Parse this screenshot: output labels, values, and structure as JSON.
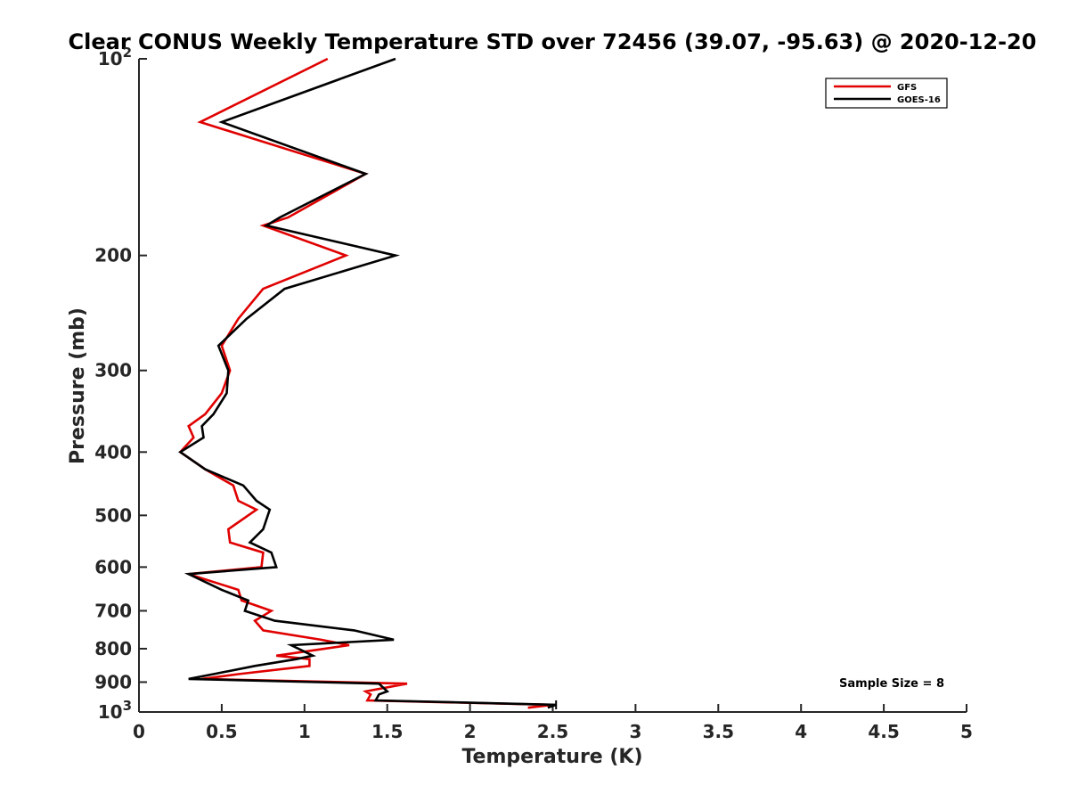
{
  "chart_data": {
    "type": "line",
    "title": "Clear CONUS Weekly Temperature STD over 72456 (39.07, -95.63) @ 2020-12-20",
    "xlabel": "Temperature (K)",
    "ylabel": "Pressure (mb)",
    "xlim": [
      0,
      5
    ],
    "ylim": [
      100,
      1000
    ],
    "y_scale": "log",
    "y_reversed": true,
    "x_ticks": [
      0,
      0.5,
      1,
      1.5,
      2,
      2.5,
      3,
      3.5,
      4,
      4.5,
      5
    ],
    "x_tick_labels": [
      "0",
      "0.5",
      "1",
      "1.5",
      "2",
      "2.5",
      "3",
      "3.5",
      "4",
      "4.5",
      "5"
    ],
    "y_ticks": [
      {
        "value": 100,
        "base": "10",
        "exp": "2"
      },
      {
        "value": 200,
        "label": "200"
      },
      {
        "value": 300,
        "label": "300"
      },
      {
        "value": 400,
        "label": "400"
      },
      {
        "value": 500,
        "label": "500"
      },
      {
        "value": 600,
        "label": "600"
      },
      {
        "value": 700,
        "label": "700"
      },
      {
        "value": 800,
        "label": "800"
      },
      {
        "value": 900,
        "label": "900"
      },
      {
        "value": 1000,
        "base": "10",
        "exp": "3"
      }
    ],
    "legend_position": "top-right",
    "annotation": "Sample Size = 8",
    "series": [
      {
        "name": "GFS",
        "color": "#e00000",
        "points": [
          [
            1.14,
            100
          ],
          [
            0.37,
            125
          ],
          [
            1.37,
            150
          ],
          [
            0.9,
            175
          ],
          [
            0.75,
            180
          ],
          [
            1.25,
            200
          ],
          [
            0.75,
            225
          ],
          [
            0.6,
            250
          ],
          [
            0.5,
            275
          ],
          [
            0.55,
            300
          ],
          [
            0.5,
            325
          ],
          [
            0.4,
            350
          ],
          [
            0.3,
            365
          ],
          [
            0.33,
            380
          ],
          [
            0.25,
            400
          ],
          [
            0.4,
            425
          ],
          [
            0.57,
            450
          ],
          [
            0.6,
            475
          ],
          [
            0.71,
            490
          ],
          [
            0.54,
            525
          ],
          [
            0.55,
            550
          ],
          [
            0.75,
            570
          ],
          [
            0.74,
            600
          ],
          [
            0.3,
            615
          ],
          [
            0.6,
            650
          ],
          [
            0.62,
            675
          ],
          [
            0.8,
            700
          ],
          [
            0.7,
            725
          ],
          [
            0.75,
            750
          ],
          [
            1.1,
            775
          ],
          [
            1.27,
            790
          ],
          [
            0.83,
            820
          ],
          [
            1.03,
            830
          ],
          [
            1.03,
            850
          ],
          [
            0.6,
            875
          ],
          [
            0.38,
            890
          ],
          [
            1.62,
            905
          ],
          [
            1.37,
            930
          ],
          [
            1.4,
            940
          ],
          [
            1.38,
            960
          ],
          [
            2.5,
            975
          ],
          [
            2.35,
            985
          ]
        ]
      },
      {
        "name": "GOES-16",
        "color": "#000000",
        "points": [
          [
            1.55,
            100
          ],
          [
            0.5,
            125
          ],
          [
            1.37,
            150
          ],
          [
            0.85,
            175
          ],
          [
            0.77,
            180
          ],
          [
            1.55,
            200
          ],
          [
            0.88,
            225
          ],
          [
            0.65,
            250
          ],
          [
            0.48,
            275
          ],
          [
            0.54,
            300
          ],
          [
            0.53,
            325
          ],
          [
            0.45,
            350
          ],
          [
            0.38,
            365
          ],
          [
            0.39,
            380
          ],
          [
            0.25,
            400
          ],
          [
            0.4,
            425
          ],
          [
            0.63,
            450
          ],
          [
            0.71,
            475
          ],
          [
            0.79,
            490
          ],
          [
            0.75,
            525
          ],
          [
            0.67,
            550
          ],
          [
            0.8,
            570
          ],
          [
            0.83,
            600
          ],
          [
            0.3,
            615
          ],
          [
            0.5,
            650
          ],
          [
            0.66,
            675
          ],
          [
            0.64,
            700
          ],
          [
            0.82,
            725
          ],
          [
            1.3,
            750
          ],
          [
            1.54,
            775
          ],
          [
            0.92,
            790
          ],
          [
            1.05,
            820
          ],
          [
            0.95,
            830
          ],
          [
            0.7,
            850
          ],
          [
            0.45,
            875
          ],
          [
            0.3,
            890
          ],
          [
            1.45,
            905
          ],
          [
            1.5,
            930
          ],
          [
            1.45,
            940
          ],
          [
            1.43,
            960
          ],
          [
            2.52,
            975
          ],
          [
            2.47,
            985
          ]
        ]
      }
    ]
  }
}
